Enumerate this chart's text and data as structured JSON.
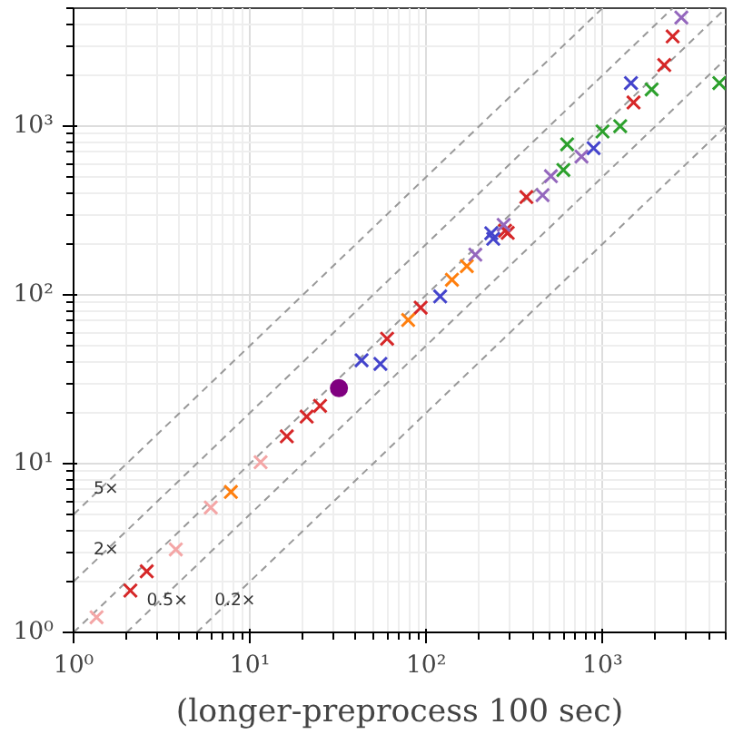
{
  "chart_data": {
    "type": "scatter",
    "xlabel": "(longer-preprocess 100 sec)",
    "log": "xy",
    "xlim": [
      1,
      5000
    ],
    "ylim": [
      1,
      5000
    ],
    "grid": true,
    "marker": "cross",
    "xticks": [
      {
        "value": 1,
        "label": "10⁰"
      },
      {
        "value": 10,
        "label": "10¹"
      },
      {
        "value": 100,
        "label": "10²"
      },
      {
        "value": 1000,
        "label": "10³"
      }
    ],
    "yticks": [
      {
        "value": 1,
        "label": "10⁰"
      },
      {
        "value": 10,
        "label": "10¹"
      },
      {
        "value": 100,
        "label": "10²"
      },
      {
        "value": 1000,
        "label": "10³"
      }
    ],
    "annotations": [
      {
        "text": "5×",
        "x": 1.3,
        "y": 6.2
      },
      {
        "text": "2×",
        "x": 1.3,
        "y": 2.7
      },
      {
        "text": "0.5×",
        "x": 2.6,
        "y": 1.35
      },
      {
        "text": "0.2×",
        "x": 6.3,
        "y": 1.35
      }
    ],
    "series": [
      {
        "type": "line",
        "color": "#999999",
        "line_style": "dashed",
        "marker": "none",
        "x": [
          1,
          1000
        ],
        "values": [
          5,
          5000
        ]
      },
      {
        "type": "line",
        "color": "#999999",
        "line_style": "dashed",
        "marker": "none",
        "x": [
          1,
          2500
        ],
        "values": [
          2,
          5000
        ]
      },
      {
        "type": "line",
        "color": "#999999",
        "line_style": "dashed",
        "marker": "none",
        "x": [
          1,
          5000
        ],
        "values": [
          1,
          5000
        ]
      },
      {
        "type": "line",
        "color": "#999999",
        "line_style": "dashed",
        "marker": "none",
        "x": [
          2,
          5000
        ],
        "values": [
          1,
          2500
        ]
      },
      {
        "type": "line",
        "color": "#999999",
        "line_style": "dashed",
        "marker": "none",
        "x": [
          5,
          5000
        ],
        "values": [
          1,
          1000
        ]
      },
      {
        "color": "#f4a6a6",
        "x": [
          1.35,
          3.8,
          6,
          11.5
        ],
        "values": [
          1.23,
          3.1,
          5.5,
          10.2
        ]
      },
      {
        "color": "#d62728",
        "x": [
          2.1,
          2.6,
          16.2,
          21,
          25,
          60,
          93,
          290,
          280,
          370,
          1500,
          2240,
          2500
        ],
        "values": [
          1.77,
          2.3,
          14.5,
          19,
          22,
          55,
          84,
          233,
          240,
          380,
          1380,
          2300,
          3400
        ]
      },
      {
        "color": "#ff7f0e",
        "x": [
          7.8,
          79,
          140,
          170
        ],
        "values": [
          6.8,
          71,
          123,
          148
        ]
      },
      {
        "color": "#4444cc",
        "x": [
          43,
          55,
          120,
          240,
          234,
          890,
          1450
        ],
        "values": [
          41,
          39,
          98,
          215,
          232,
          740,
          1800
        ]
      },
      {
        "color": "#9467bd",
        "x": [
          190,
          275,
          457,
          510,
          760,
          2800
        ],
        "values": [
          173,
          260,
          390,
          505,
          660,
          4400
        ]
      },
      {
        "color": "#2ca02c",
        "x": [
          600,
          630,
          1000,
          1260,
          1900,
          4600
        ],
        "values": [
          550,
          780,
          930,
          1000,
          1650,
          1800
        ]
      },
      {
        "color": "#800080",
        "marker": "circle",
        "x": [
          32
        ],
        "values": [
          28
        ]
      }
    ]
  }
}
